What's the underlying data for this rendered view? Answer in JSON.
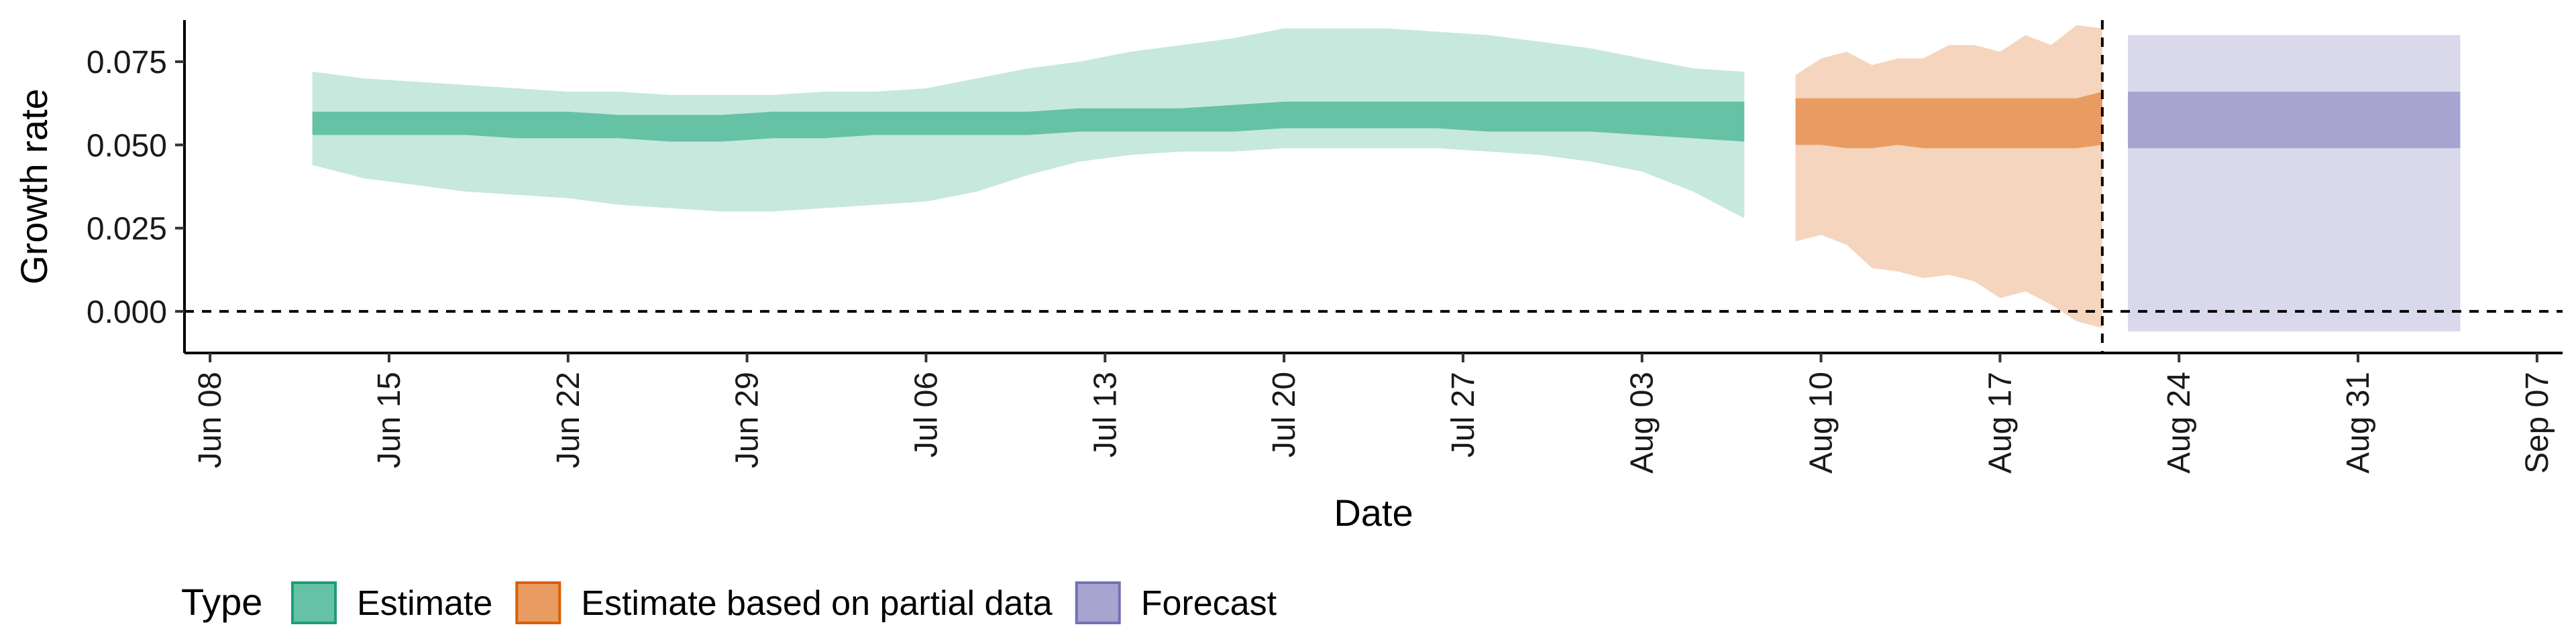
{
  "chart_data": {
    "type": "area",
    "xlabel": "Date",
    "ylabel": "Growth rate",
    "xlim": [
      "2020-06-07",
      "2020-09-08"
    ],
    "ylim": [
      -0.0125,
      0.0875
    ],
    "x_ticks": [
      "2020-06-08",
      "2020-06-15",
      "2020-06-22",
      "2020-06-29",
      "2020-07-06",
      "2020-07-13",
      "2020-07-20",
      "2020-07-27",
      "2020-08-03",
      "2020-08-10",
      "2020-08-17",
      "2020-08-24",
      "2020-08-31",
      "2020-09-07"
    ],
    "x_tick_labels": [
      "Jun 08",
      "Jun 15",
      "Jun 22",
      "Jun 29",
      "Jul 06",
      "Jul 13",
      "Jul 20",
      "Jul 27",
      "Aug 03",
      "Aug 10",
      "Aug 17",
      "Aug 24",
      "Aug 31",
      "Sep 07"
    ],
    "y_ticks": [
      0.0,
      0.025,
      0.05,
      0.075
    ],
    "y_tick_labels": [
      "0.000",
      "0.025",
      "0.050",
      "0.075"
    ],
    "reference_lines": [
      {
        "axis": "y",
        "value": 0,
        "style": "dashed"
      },
      {
        "axis": "x",
        "value": "2020-08-21",
        "style": "dashed"
      }
    ],
    "grid": false,
    "legend": {
      "position": "bottom-left",
      "title": "Type",
      "entries": [
        "Estimate",
        "Estimate based on partial data",
        "Forecast"
      ]
    },
    "series": [
      {
        "name": "Estimate",
        "fill": "#66c2a5",
        "outer_fill": "#c6e8dd",
        "stroke": "#1b9e77",
        "x": [
          "2020-06-12",
          "2020-06-14",
          "2020-06-16",
          "2020-06-18",
          "2020-06-20",
          "2020-06-22",
          "2020-06-24",
          "2020-06-26",
          "2020-06-28",
          "2020-06-30",
          "2020-07-02",
          "2020-07-04",
          "2020-07-06",
          "2020-07-08",
          "2020-07-10",
          "2020-07-12",
          "2020-07-14",
          "2020-07-16",
          "2020-07-18",
          "2020-07-20",
          "2020-07-22",
          "2020-07-24",
          "2020-07-26",
          "2020-07-28",
          "2020-07-30",
          "2020-08-01",
          "2020-08-03",
          "2020-08-05",
          "2020-08-07"
        ],
        "lower_90": [
          0.044,
          0.04,
          0.038,
          0.036,
          0.035,
          0.034,
          0.032,
          0.031,
          0.03,
          0.03,
          0.031,
          0.032,
          0.033,
          0.036,
          0.041,
          0.045,
          0.047,
          0.048,
          0.048,
          0.049,
          0.049,
          0.049,
          0.049,
          0.048,
          0.047,
          0.045,
          0.042,
          0.036,
          0.028
        ],
        "lower_50": [
          0.053,
          0.053,
          0.053,
          0.053,
          0.052,
          0.052,
          0.052,
          0.051,
          0.051,
          0.052,
          0.052,
          0.053,
          0.053,
          0.053,
          0.053,
          0.054,
          0.054,
          0.054,
          0.054,
          0.055,
          0.055,
          0.055,
          0.055,
          0.054,
          0.054,
          0.054,
          0.053,
          0.052,
          0.051
        ],
        "upper_50": [
          0.06,
          0.06,
          0.06,
          0.06,
          0.06,
          0.06,
          0.059,
          0.059,
          0.059,
          0.06,
          0.06,
          0.06,
          0.06,
          0.06,
          0.06,
          0.061,
          0.061,
          0.061,
          0.062,
          0.063,
          0.063,
          0.063,
          0.063,
          0.063,
          0.063,
          0.063,
          0.063,
          0.063,
          0.063
        ],
        "upper_90": [
          0.072,
          0.07,
          0.069,
          0.068,
          0.067,
          0.066,
          0.066,
          0.065,
          0.065,
          0.065,
          0.066,
          0.066,
          0.067,
          0.07,
          0.073,
          0.075,
          0.078,
          0.08,
          0.082,
          0.085,
          0.085,
          0.085,
          0.084,
          0.083,
          0.081,
          0.079,
          0.076,
          0.073,
          0.072
        ]
      },
      {
        "name": "Estimate based on partial data",
        "fill": "#e89c62",
        "outer_fill": "#f5d5bd",
        "stroke": "#d95f02",
        "x": [
          "2020-08-09",
          "2020-08-10",
          "2020-08-11",
          "2020-08-12",
          "2020-08-13",
          "2020-08-14",
          "2020-08-15",
          "2020-08-16",
          "2020-08-17",
          "2020-08-18",
          "2020-08-19",
          "2020-08-20",
          "2020-08-21"
        ],
        "lower_90": [
          0.021,
          0.023,
          0.02,
          0.013,
          0.012,
          0.01,
          0.011,
          0.009,
          0.004,
          0.006,
          0.002,
          -0.003,
          -0.005
        ],
        "lower_50": [
          0.05,
          0.05,
          0.049,
          0.049,
          0.05,
          0.049,
          0.049,
          0.049,
          0.049,
          0.049,
          0.049,
          0.049,
          0.05
        ],
        "upper_50": [
          0.064,
          0.064,
          0.064,
          0.064,
          0.064,
          0.064,
          0.064,
          0.064,
          0.064,
          0.064,
          0.064,
          0.064,
          0.066
        ],
        "upper_90": [
          0.071,
          0.076,
          0.078,
          0.074,
          0.076,
          0.076,
          0.08,
          0.08,
          0.078,
          0.083,
          0.08,
          0.086,
          0.085
        ]
      },
      {
        "name": "Forecast",
        "fill": "#a7a5d0",
        "outer_fill": "#dad9ec",
        "stroke": "#7570b3",
        "x": [
          "2020-08-22",
          "2020-09-04"
        ],
        "lower_90": [
          -0.006,
          -0.006
        ],
        "lower_50": [
          0.049,
          0.049
        ],
        "upper_50": [
          0.066,
          0.066
        ],
        "upper_90": [
          0.083,
          0.083
        ]
      }
    ]
  }
}
